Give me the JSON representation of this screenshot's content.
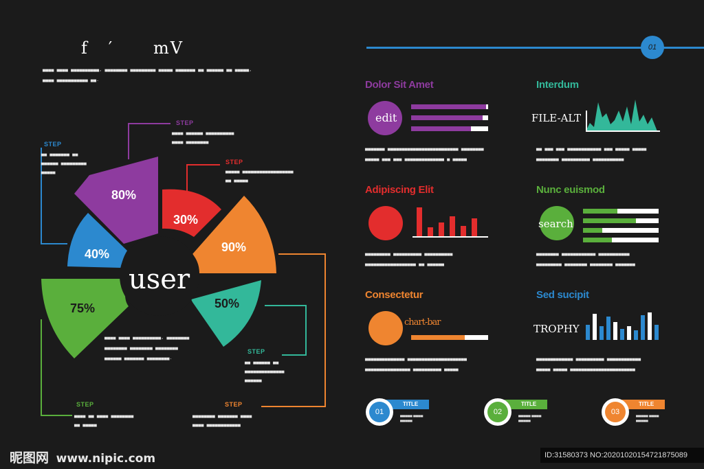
{
  "left": {
    "title": "f   ′      mV",
    "intro": [
      "▄▄▄▄ ▄▄▄▄ ▄▄▄▄▄▄▄▄▄▄, ▄▄▄▄▄▄▄▄ ▄▄▄▄▄▄▄▄▄ ▄▄▄▄▄ ▄▄▄▄▄▄▄ ▄▄ ▄▄▄▄▄▄ ▄▄ ▄▄▄▄▄,",
      "▄▄▄▄ ▄▄▄▄▄▄▄▄▄▄▄ ▄▄."
    ],
    "center_label": "user",
    "segments": [
      {
        "label": "80%",
        "color": "#8e3b9f"
      },
      {
        "label": "30%",
        "color": "#e32d2d"
      },
      {
        "label": "90%",
        "color": "#ef8530"
      },
      {
        "label": "50%",
        "color": "#33b89a"
      },
      {
        "label": "75%",
        "color": "#5aaf3c"
      },
      {
        "label": "40%",
        "color": "#2c89cf"
      }
    ],
    "steps": [
      {
        "label": "STEP",
        "color": "#8e3b9f",
        "text": [
          "▄▄▄▄ ▄▄▄▄▄▄ ▄▄▄▄▄▄▄▄▄▄",
          "▄▄▄▄ ▄▄▄▄▄▄▄▄"
        ]
      },
      {
        "label": "STEP",
        "color": "#e32d2d",
        "text": [
          "▄▄▄▄▄ ▄▄▄▄▄▄▄▄▄▄▄▄▄▄▄▄▄▄",
          "▄▄ ▄▄▄▄▄"
        ]
      },
      {
        "label": "STEP",
        "color": "#2c89cf",
        "text": [
          "▄▄ ▄▄▄▄▄▄▄ ▄▄",
          "▄▄▄▄▄▄ ▄▄▄▄▄▄▄▄▄",
          "▄▄▄▄▄"
        ]
      },
      {
        "label": "STEP",
        "color": "#33b89a",
        "text": [
          "▄▄ ▄▄▄▄▄▄ ▄▄",
          "▄▄▄▄▄▄▄▄▄▄▄▄▄▄",
          "▄▄▄▄▄▄"
        ]
      },
      {
        "label": "STEP",
        "color": "#5aaf3c",
        "text": [
          "▄▄▄▄ ▄▄ ▄▄▄▄ ▄▄▄▄▄▄▄▄",
          "▄▄ ▄▄▄▄▄"
        ]
      },
      {
        "label": "STEP",
        "color": "#ef8530",
        "text": [
          "▄▄▄▄▄▄▄▄ ▄▄▄▄▄▄▄ ▄▄▄▄",
          "▄▄▄▄ ▄▄▄▄▄▄▄▄▄▄▄▄"
        ]
      }
    ],
    "body_text": [
      "▄▄▄▄ ▄▄▄▄ ▄▄▄▄▄▄▄▄▄▄, ▄▄▄▄▄▄▄▄",
      "▄▄▄▄▄▄▄▄ ▄▄▄▄▄▄▄▄ ▄▄▄▄▄▄▄▄",
      "▄▄▄▄▄▄ ▄▄▄▄▄▄▄ ▄▄▄▄▄▄▄▄."
    ]
  },
  "right": {
    "page_number": "01",
    "line_color": "#2c89cf",
    "panels": [
      {
        "heading": "Dolor Sit Amet",
        "color": "#8e3b9f",
        "icon_word": "edit",
        "levels": [
          0.97,
          0.93,
          0.78
        ],
        "text": [
          "▄▄▄▄▄▄▄ ▄▄▄▄▄▄▄▄▄▄▄▄▄▄▄▄▄▄▄▄▄▄▄▄▄ ▄▄▄▄▄▄▄▄",
          "▄▄▄▄▄ ▄▄▄ ▄▄▄ ▄▄▄▄▄▄▄▄▄▄▄▄▄▄ ▄ ▄▄▄▄▄"
        ]
      },
      {
        "heading": "Interdum",
        "color": "#33b89a",
        "icon_word": "FILE-ALT",
        "text": [
          "▄▄ ▄▄▄ ▄▄▄ ▄▄▄▄▄▄▄▄▄▄▄▄ ▄▄▄ ▄▄▄▄▄ ▄▄▄▄▄",
          "▄▄▄▄▄▄▄▄ ▄▄▄▄▄▄▄▄▄▄ ▄▄▄▄▄▄▄▄▄▄▄"
        ]
      },
      {
        "heading": "Adipiscing Elit",
        "color": "#e32d2d",
        "bars": [
          0.95,
          0.3,
          0.45,
          0.65,
          0.35,
          0.6
        ],
        "text": [
          "▄▄▄▄▄▄▄▄▄ ▄▄▄▄▄▄▄▄▄▄ ▄▄▄▄▄▄▄▄▄▄",
          "▄▄▄▄▄▄▄▄▄▄▄▄▄▄▄▄▄▄ ▄▄ ▄▄▄▄▄▄"
        ]
      },
      {
        "heading": "Nunc euismod",
        "color": "#5aaf3c",
        "icon_word": "search",
        "levels": [
          0.45,
          0.7,
          0.25,
          0.38
        ],
        "text": [
          "▄▄▄▄▄▄▄▄ ▄▄▄▄▄▄▄▄▄▄▄▄ ▄▄▄▄▄▄▄▄▄▄▄",
          "▄▄▄▄▄▄▄▄▄ ▄▄▄▄▄▄▄▄ ▄▄▄▄▄▄▄▄ ▄▄▄▄▄▄▄"
        ]
      },
      {
        "heading": "Consectetur",
        "color": "#ef8530",
        "icon_word": "chart-bar",
        "levels": [
          0.7
        ],
        "text": [
          "▄▄▄▄▄▄▄▄▄▄▄▄▄▄ ▄▄▄▄▄▄▄▄▄▄▄▄▄▄▄▄▄▄▄▄▄",
          "▄▄▄▄▄▄▄▄▄▄▄▄▄▄▄▄ ▄▄▄▄▄▄▄▄▄▄ ▄▄▄▄▄"
        ]
      },
      {
        "heading": "Sed sucipit",
        "color": "#2c89cf",
        "icon_word": "TROPHY",
        "bars": [
          0.55,
          0.95,
          0.5,
          0.85,
          0.65,
          0.4,
          0.5,
          0.35,
          0.9,
          1.0,
          0.55
        ],
        "text": [
          "▄▄▄▄▄▄▄▄▄▄▄▄▄ ▄▄▄▄▄▄▄▄▄▄ ▄▄▄▄▄▄▄▄▄▄▄▄",
          "▄▄▄▄▄ ▄▄▄▄▄ ▄▄▄▄▄▄▄▄▄▄▄▄▄▄▄▄▄▄▄▄▄▄▄"
        ]
      }
    ],
    "badges": [
      {
        "num": "01",
        "title": "TITLE",
        "color": "#2c89cf",
        "sub": [
          "▄▄▄▄▄ ▄▄▄▄",
          "▄▄▄▄▄"
        ]
      },
      {
        "num": "02",
        "title": "TITLE",
        "color": "#5aaf3c",
        "sub": [
          "▄▄▄▄▄ ▄▄▄▄",
          "▄▄▄▄▄"
        ]
      },
      {
        "num": "03",
        "title": "TITLE",
        "color": "#ef8530",
        "sub": [
          "▄▄▄▄▄ ▄▄▄▄",
          "▄▄▄▄▄"
        ]
      }
    ]
  },
  "watermark": {
    "logo": "昵图网",
    "site": "www.nipic.com",
    "id": "ID:31580373 NO:20201020154721875089"
  }
}
